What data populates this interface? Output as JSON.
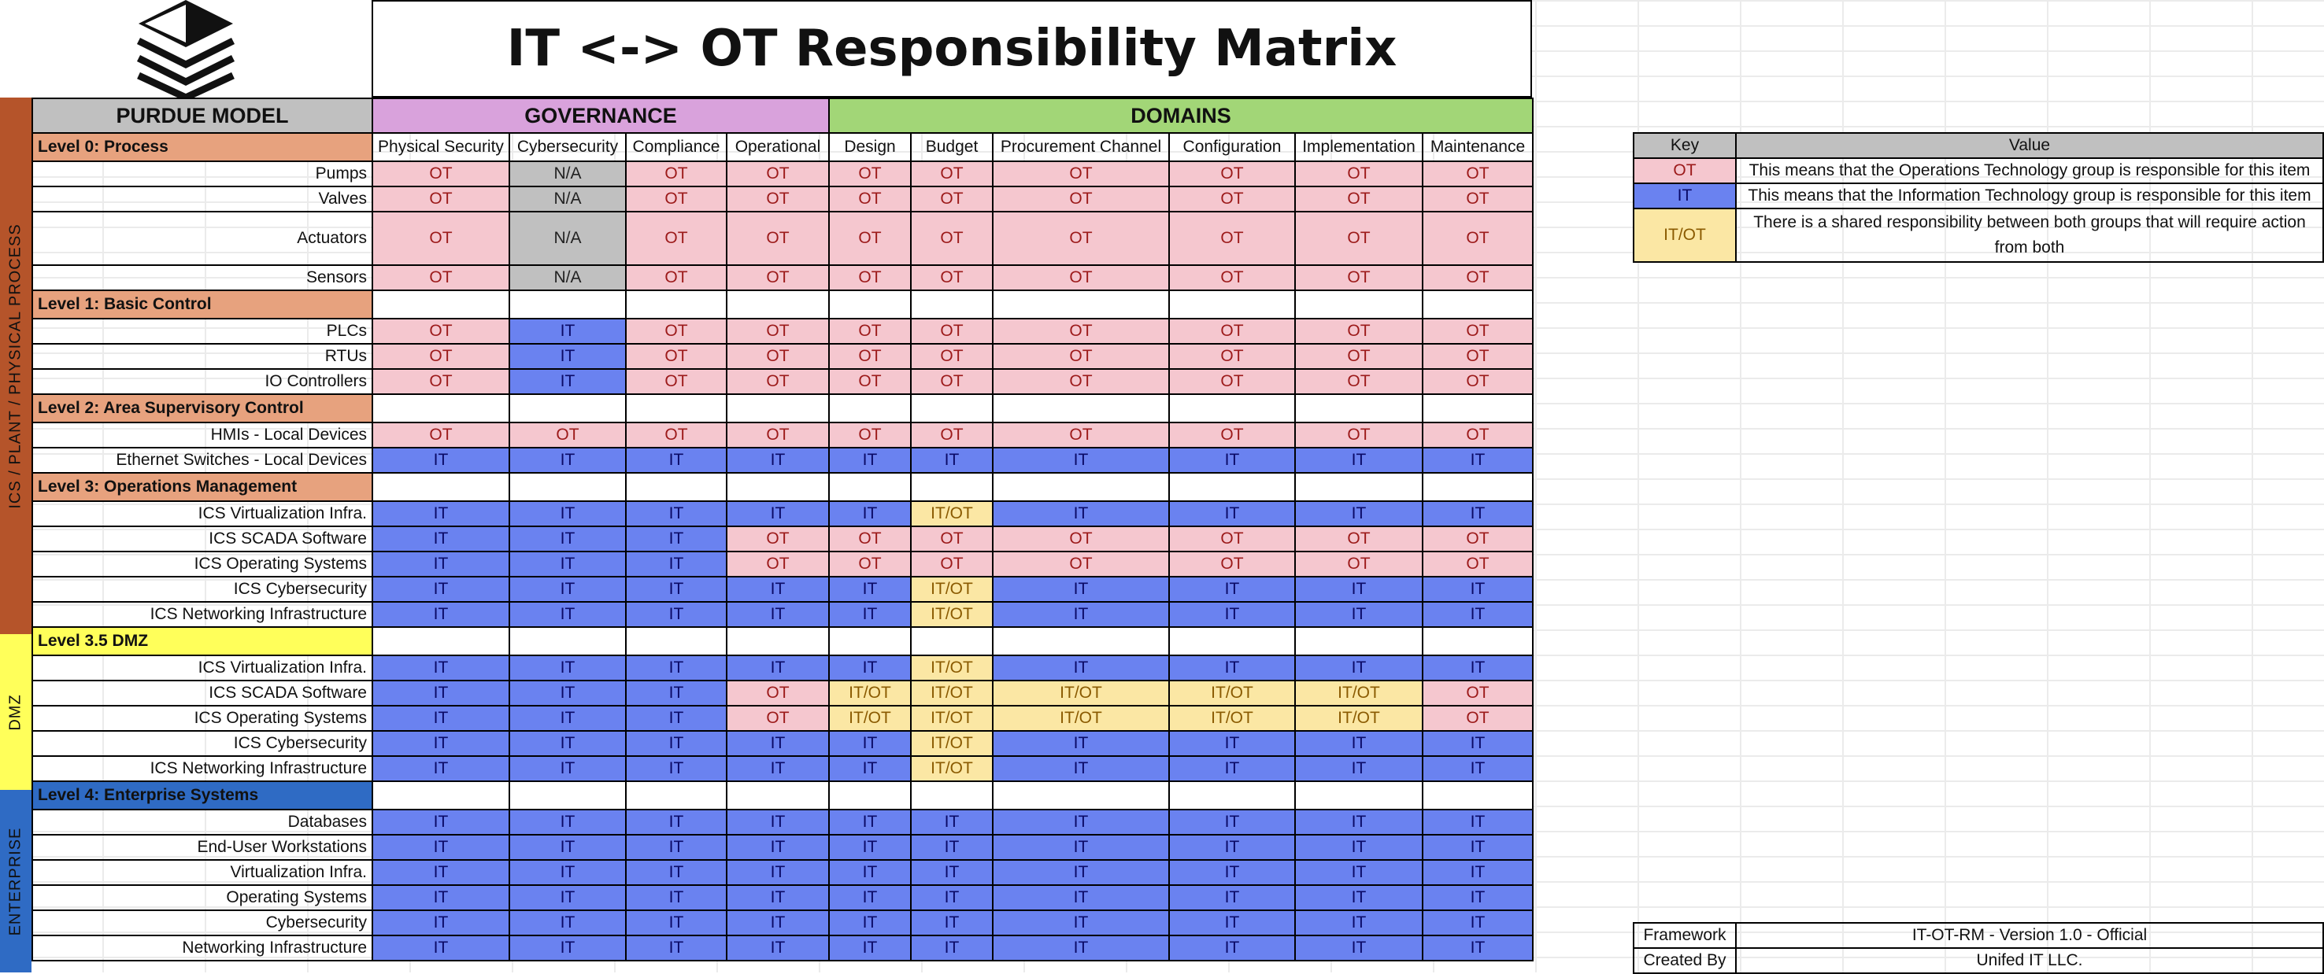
{
  "title": "IT <-> OT Responsibility Matrix",
  "legend_colors": {
    "OT": "#f5c7cf",
    "IT": "#6a82f0",
    "IT/OT": "#fbe7a4",
    "N/A": "#c0c0c0"
  },
  "logo_icon": "stacked-layers-icon",
  "headers": {
    "purdue": "PURDUE MODEL",
    "governance": "GOVERNANCE",
    "domains": "DOMAINS",
    "columns": [
      "Physical Security",
      "Cybersecurity",
      "Compliance",
      "Operational",
      "Design",
      "Budget",
      "Procurement Channel",
      "Configuration",
      "Implementation",
      "Maintenance"
    ]
  },
  "side_labels": {
    "ics": "ICS / PLANT / PHYSICAL PROCESS",
    "dmz": "DMZ",
    "enterprise": "ENTERPRISE"
  },
  "rows": [
    {
      "level": "Level 0: Process",
      "zone": "ics"
    },
    {
      "asset": "Pumps",
      "values": [
        "OT",
        "N/A",
        "OT",
        "OT",
        "OT",
        "OT",
        "OT",
        "OT",
        "OT",
        "OT"
      ]
    },
    {
      "asset": "Valves",
      "values": [
        "OT",
        "N/A",
        "OT",
        "OT",
        "OT",
        "OT",
        "OT",
        "OT",
        "OT",
        "OT"
      ]
    },
    {
      "asset": "Actuators",
      "tall": true,
      "values": [
        "OT",
        "N/A",
        "OT",
        "OT",
        "OT",
        "OT",
        "OT",
        "OT",
        "OT",
        "OT"
      ]
    },
    {
      "asset": "Sensors",
      "values": [
        "OT",
        "N/A",
        "OT",
        "OT",
        "OT",
        "OT",
        "OT",
        "OT",
        "OT",
        "OT"
      ]
    },
    {
      "level": "Level 1: Basic Control",
      "zone": "ics"
    },
    {
      "asset": "PLCs",
      "values": [
        "OT",
        "IT",
        "OT",
        "OT",
        "OT",
        "OT",
        "OT",
        "OT",
        "OT",
        "OT"
      ]
    },
    {
      "asset": "RTUs",
      "values": [
        "OT",
        "IT",
        "OT",
        "OT",
        "OT",
        "OT",
        "OT",
        "OT",
        "OT",
        "OT"
      ]
    },
    {
      "asset": "IO Controllers",
      "values": [
        "OT",
        "IT",
        "OT",
        "OT",
        "OT",
        "OT",
        "OT",
        "OT",
        "OT",
        "OT"
      ]
    },
    {
      "level": "Level 2: Area Supervisory Control",
      "zone": "ics"
    },
    {
      "asset": "HMIs - Local Devices",
      "values": [
        "OT",
        "OT",
        "OT",
        "OT",
        "OT",
        "OT",
        "OT",
        "OT",
        "OT",
        "OT"
      ]
    },
    {
      "asset": "Ethernet Switches - Local Devices",
      "values": [
        "IT",
        "IT",
        "IT",
        "IT",
        "IT",
        "IT",
        "IT",
        "IT",
        "IT",
        "IT"
      ]
    },
    {
      "level": "Level 3: Operations Management",
      "zone": "ics"
    },
    {
      "asset": "ICS Virtualization Infra.",
      "values": [
        "IT",
        "IT",
        "IT",
        "IT",
        "IT",
        "IT/OT",
        "IT",
        "IT",
        "IT",
        "IT"
      ]
    },
    {
      "asset": "ICS SCADA Software",
      "values": [
        "IT",
        "IT",
        "IT",
        "OT",
        "OT",
        "OT",
        "OT",
        "OT",
        "OT",
        "OT"
      ]
    },
    {
      "asset": "ICS Operating Systems",
      "values": [
        "IT",
        "IT",
        "IT",
        "OT",
        "OT",
        "OT",
        "OT",
        "OT",
        "OT",
        "OT"
      ]
    },
    {
      "asset": "ICS Cybersecurity",
      "values": [
        "IT",
        "IT",
        "IT",
        "IT",
        "IT",
        "IT/OT",
        "IT",
        "IT",
        "IT",
        "IT"
      ]
    },
    {
      "asset": "ICS Networking Infrastructure",
      "values": [
        "IT",
        "IT",
        "IT",
        "IT",
        "IT",
        "IT/OT",
        "IT",
        "IT",
        "IT",
        "IT"
      ]
    },
    {
      "level": "Level  3.5 DMZ",
      "zone": "dmz"
    },
    {
      "asset": "ICS Virtualization Infra.",
      "values": [
        "IT",
        "IT",
        "IT",
        "IT",
        "IT",
        "IT/OT",
        "IT",
        "IT",
        "IT",
        "IT"
      ]
    },
    {
      "asset": "ICS SCADA Software",
      "values": [
        "IT",
        "IT",
        "IT",
        "OT",
        "IT/OT",
        "IT/OT",
        "IT/OT",
        "IT/OT",
        "IT/OT",
        "OT"
      ]
    },
    {
      "asset": "ICS Operating Systems",
      "values": [
        "IT",
        "IT",
        "IT",
        "OT",
        "IT/OT",
        "IT/OT",
        "IT/OT",
        "IT/OT",
        "IT/OT",
        "OT"
      ]
    },
    {
      "asset": "ICS Cybersecurity",
      "values": [
        "IT",
        "IT",
        "IT",
        "IT",
        "IT",
        "IT/OT",
        "IT",
        "IT",
        "IT",
        "IT"
      ]
    },
    {
      "asset": "ICS Networking Infrastructure",
      "values": [
        "IT",
        "IT",
        "IT",
        "IT",
        "IT",
        "IT/OT",
        "IT",
        "IT",
        "IT",
        "IT"
      ]
    },
    {
      "level": "Level 4: Enterprise Systems",
      "zone": "enterprise"
    },
    {
      "asset": "Databases",
      "values": [
        "IT",
        "IT",
        "IT",
        "IT",
        "IT",
        "IT",
        "IT",
        "IT",
        "IT",
        "IT"
      ]
    },
    {
      "asset": "End-User Workstations",
      "values": [
        "IT",
        "IT",
        "IT",
        "IT",
        "IT",
        "IT",
        "IT",
        "IT",
        "IT",
        "IT"
      ]
    },
    {
      "asset": "Virtualization Infra.",
      "values": [
        "IT",
        "IT",
        "IT",
        "IT",
        "IT",
        "IT",
        "IT",
        "IT",
        "IT",
        "IT"
      ]
    },
    {
      "asset": "Operating Systems",
      "values": [
        "IT",
        "IT",
        "IT",
        "IT",
        "IT",
        "IT",
        "IT",
        "IT",
        "IT",
        "IT"
      ]
    },
    {
      "asset": "Cybersecurity",
      "values": [
        "IT",
        "IT",
        "IT",
        "IT",
        "IT",
        "IT",
        "IT",
        "IT",
        "IT",
        "IT"
      ]
    },
    {
      "asset": "Networking Infrastructure",
      "values": [
        "IT",
        "IT",
        "IT",
        "IT",
        "IT",
        "IT",
        "IT",
        "IT",
        "IT",
        "IT"
      ]
    }
  ],
  "key": {
    "header_key": "Key",
    "header_value": "Value",
    "entries": [
      {
        "key": "OT",
        "value": "This means that the Operations Technology group is responsible for this item"
      },
      {
        "key": "IT",
        "value": "This means that the Information Technology group is responsible for this item"
      },
      {
        "key": "IT/OT",
        "value": "There is a shared responsibility between both groups that will require action from both"
      }
    ]
  },
  "footer": {
    "framework_label": "Framework",
    "framework_value": "IT-OT-RM - Version 1.0 - Official",
    "created_by_label": "Created By",
    "created_by_value": "Unifed IT LLC."
  }
}
